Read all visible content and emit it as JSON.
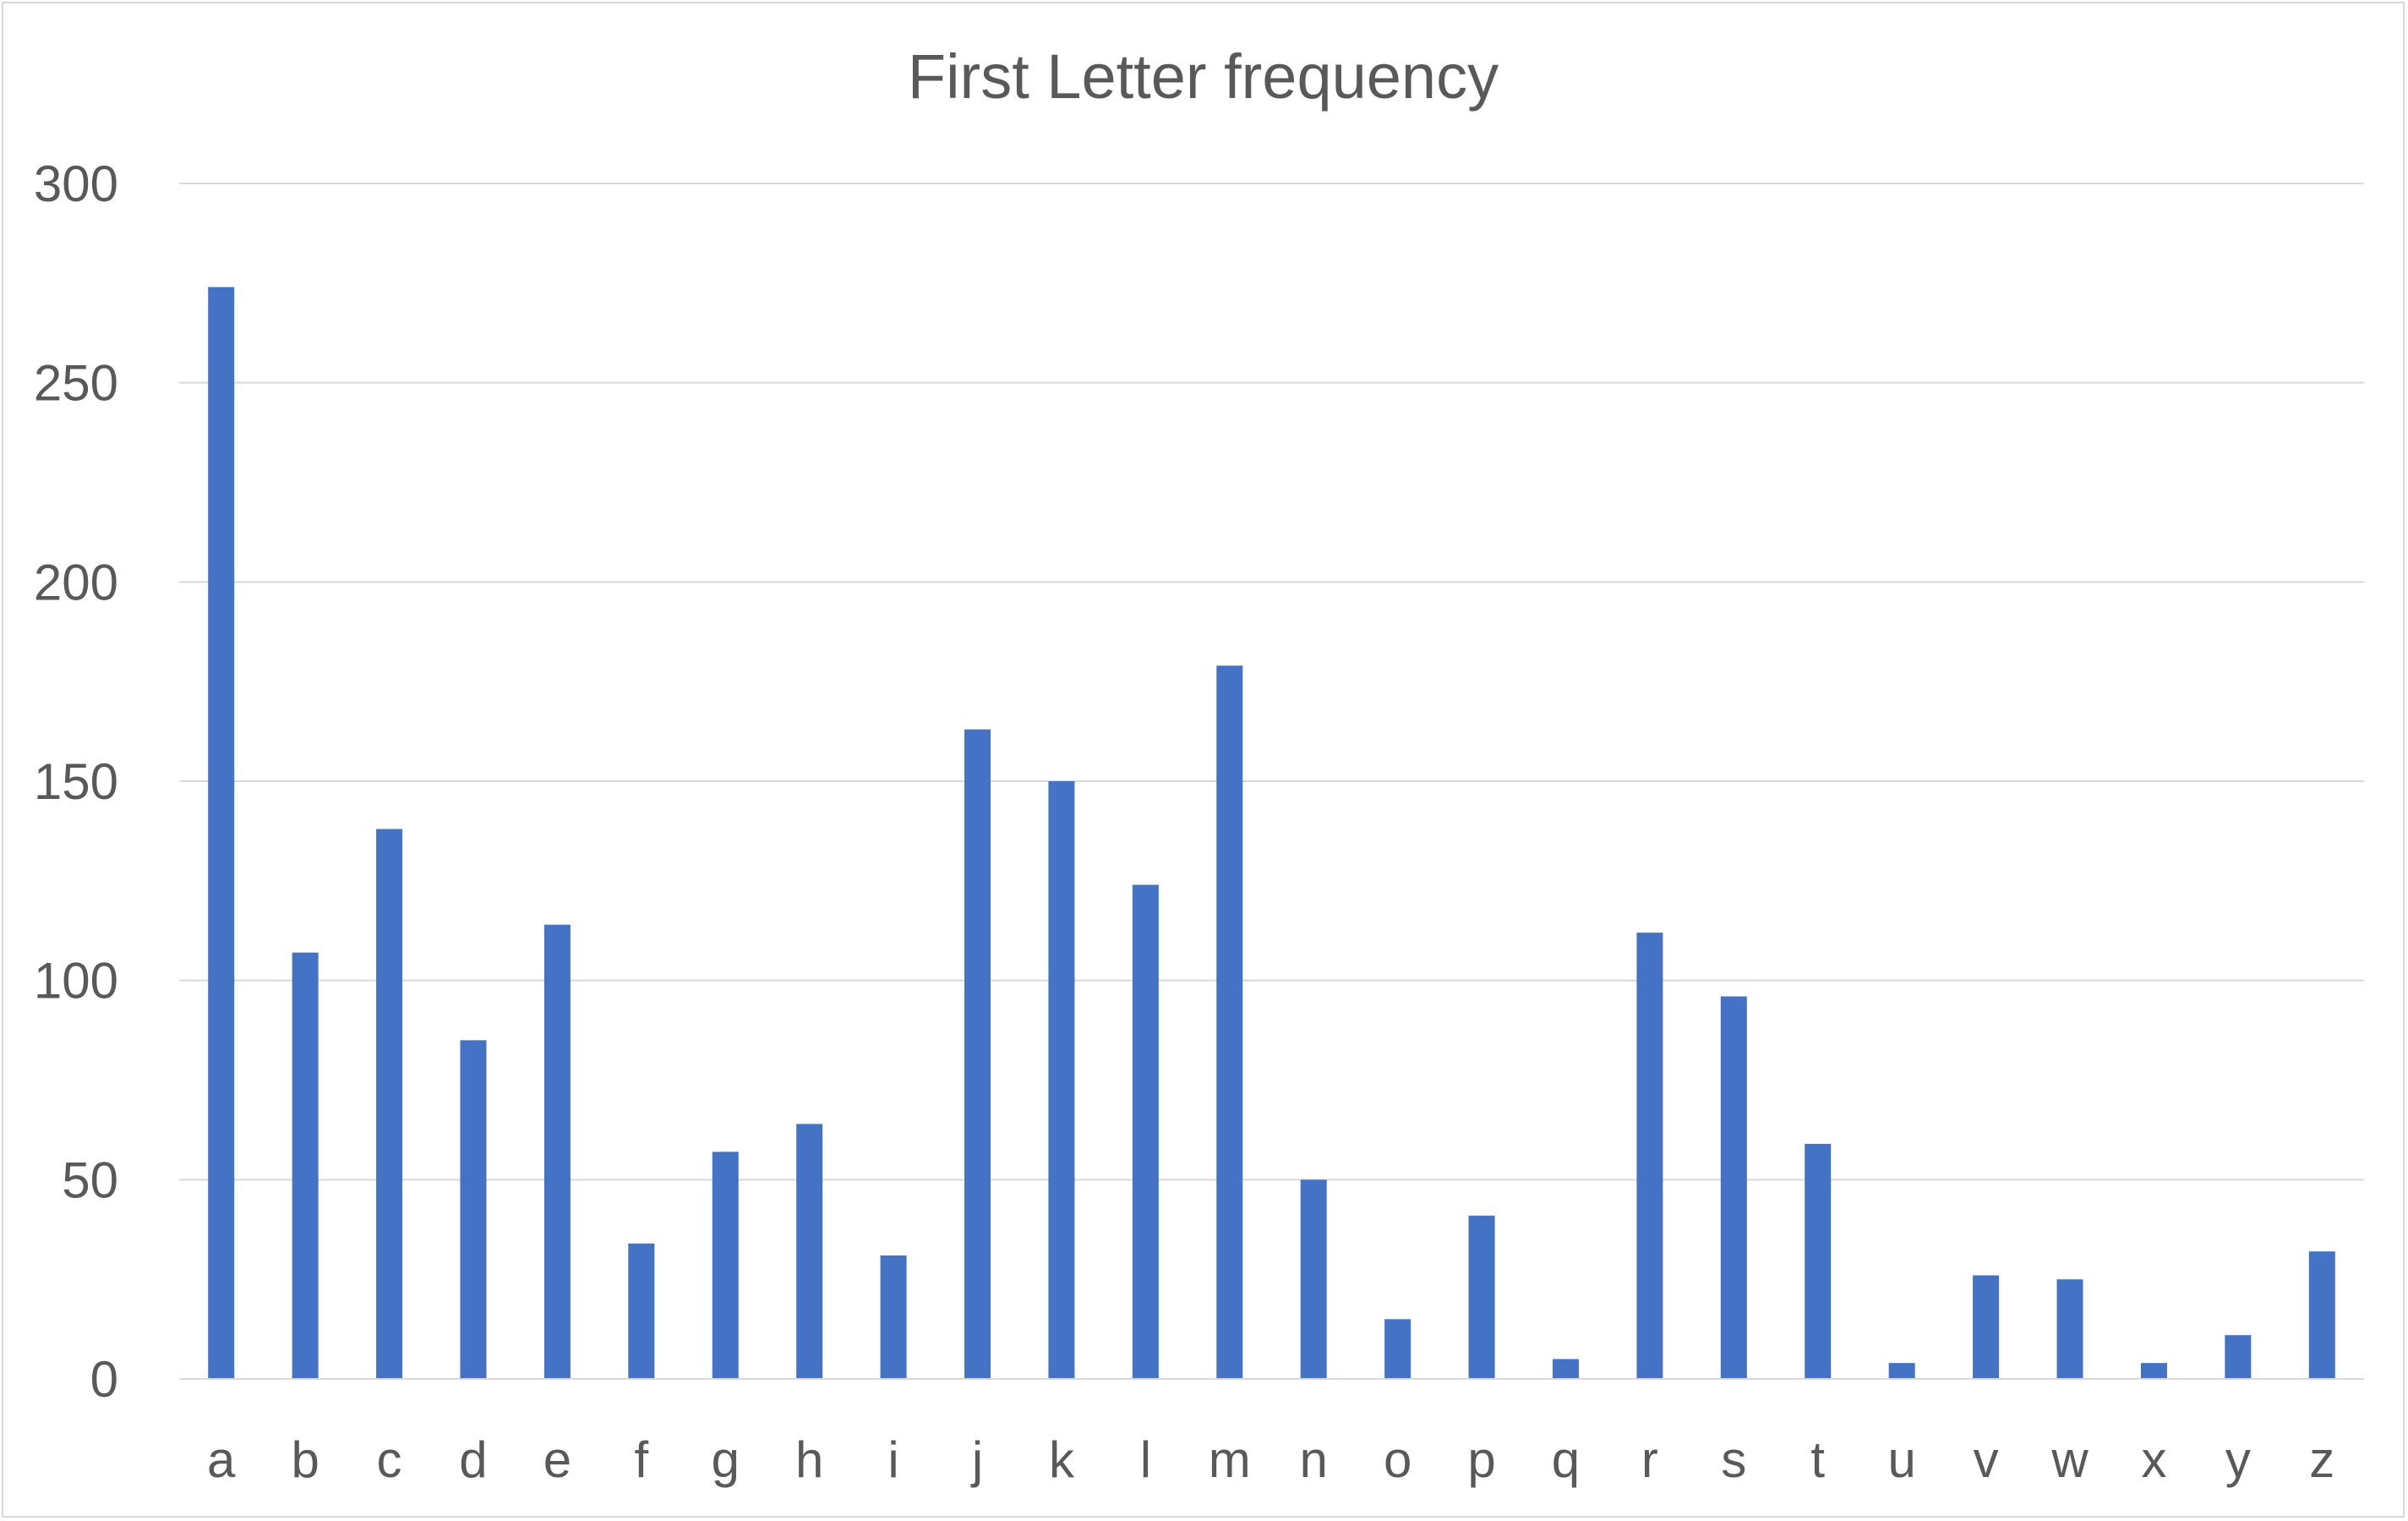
{
  "chart_data": {
    "type": "bar",
    "title": "First Letter frequency",
    "xlabel": "",
    "ylabel": "",
    "categories": [
      "a",
      "b",
      "c",
      "d",
      "e",
      "f",
      "g",
      "h",
      "i",
      "j",
      "k",
      "l",
      "m",
      "n",
      "o",
      "p",
      "q",
      "r",
      "s",
      "t",
      "u",
      "v",
      "w",
      "x",
      "y",
      "z"
    ],
    "values": [
      274,
      107,
      138,
      85,
      114,
      34,
      57,
      64,
      31,
      163,
      150,
      124,
      179,
      50,
      15,
      41,
      5,
      112,
      96,
      59,
      4,
      26,
      25,
      4,
      11,
      32
    ],
    "ylim": [
      0,
      300
    ],
    "yticks": [
      0,
      50,
      100,
      150,
      200,
      250,
      300
    ],
    "grid": true,
    "legend": "none",
    "bar_color": "#4472c4",
    "grid_color": "#d9d9d9",
    "text_color": "#595959"
  }
}
